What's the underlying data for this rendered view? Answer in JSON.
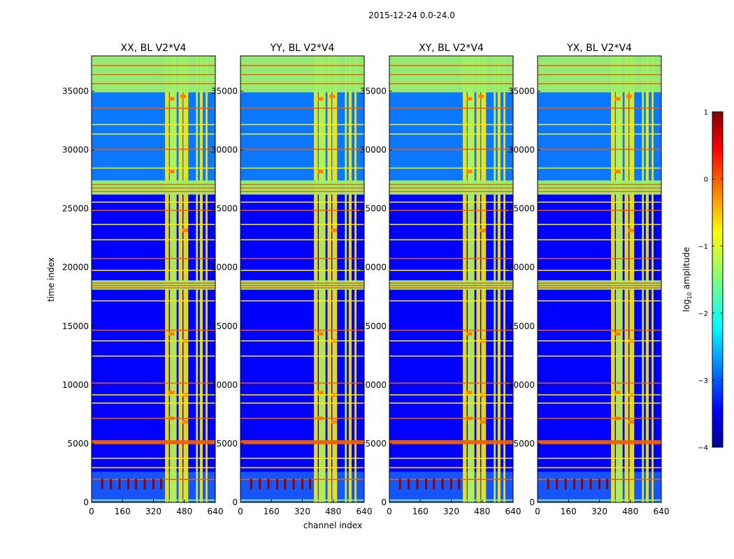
{
  "figure": {
    "suptitle": "2015-12-24 0.0-24.0",
    "xlabel": "channel index",
    "ylabel": "time index"
  },
  "chart_data": {
    "type": "heatmap",
    "title": "2015-12-24 0.0-24.0",
    "xlabel": "channel index",
    "ylabel": "time index",
    "xlim": [
      0,
      640
    ],
    "ylim": [
      0,
      38000
    ],
    "x_ticks": [
      0,
      160,
      320,
      480,
      640
    ],
    "y_ticks": [
      0,
      5000,
      10000,
      15000,
      20000,
      25000,
      30000,
      35000
    ],
    "panels": [
      {
        "title": "XX, BL V2*V4",
        "polarization": "XX"
      },
      {
        "title": "YY, BL V2*V4",
        "polarization": "YY"
      },
      {
        "title": "XY, BL V2*V4",
        "polarization": "XY"
      },
      {
        "title": "YX, BL V2*V4",
        "polarization": "YX"
      }
    ],
    "colorbar": {
      "label_prefix": "log",
      "label_sub": "10",
      "label_suffix": " amplitude",
      "range": [
        -4,
        1
      ],
      "ticks": [
        1,
        0,
        -1,
        -2,
        -3,
        -4
      ],
      "tick_labels": [
        "1",
        "0",
        "−1",
        "−2",
        "−3",
        "−4"
      ],
      "colormap": "jet"
    },
    "rfi_channel_bands": [
      [
        380,
        400
      ],
      [
        405,
        440
      ],
      [
        450,
        470
      ],
      [
        475,
        500
      ],
      [
        540,
        550
      ],
      [
        560,
        575
      ],
      [
        590,
        600
      ]
    ],
    "flagged_time_bands": [
      [
        200,
        250
      ],
      [
        4950,
        5300
      ],
      [
        18100,
        18900
      ],
      [
        26200,
        27400
      ],
      [
        34900,
        38000
      ]
    ],
    "colors": {
      "background": "#00008f",
      "low": "#0000ff",
      "mid": "#00dfff",
      "band": "#ffef00",
      "rfi": "#ff7f00",
      "flag": "#ef6000",
      "high": "#8f0000"
    }
  }
}
